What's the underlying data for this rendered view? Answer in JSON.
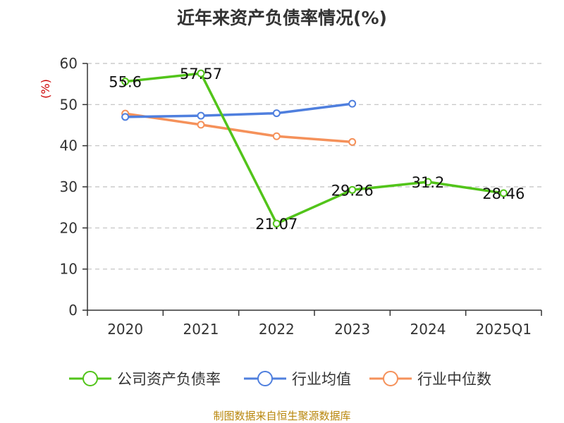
{
  "chart_data": {
    "type": "line",
    "title": "近年来资产负债率情况(%)",
    "ylabel": "(%)",
    "categories": [
      "2020",
      "2021",
      "2022",
      "2023",
      "2024",
      "2025Q1"
    ],
    "ylim": [
      0,
      60
    ],
    "yticks": [
      "0",
      "10",
      "20",
      "30",
      "40",
      "50",
      "60"
    ],
    "grid": true,
    "legend_position": "bottom",
    "series": [
      {
        "name": "公司资产负债率",
        "color": "#52c41a",
        "values": [
          55.6,
          57.57,
          21.07,
          29.26,
          31.2,
          28.46
        ],
        "labels": [
          "55.6",
          "57.57",
          "21.07",
          "29.26",
          "31.2",
          "28.46"
        ]
      },
      {
        "name": "行业均值",
        "color": "#4f7fde",
        "values": [
          47.0,
          47.3,
          47.9,
          50.2,
          null,
          null
        ]
      },
      {
        "name": "行业中位数",
        "color": "#f5915a",
        "values": [
          47.8,
          45.1,
          42.3,
          40.9,
          null,
          null
        ]
      }
    ],
    "source": "制图数据来自恒生聚源数据库"
  }
}
